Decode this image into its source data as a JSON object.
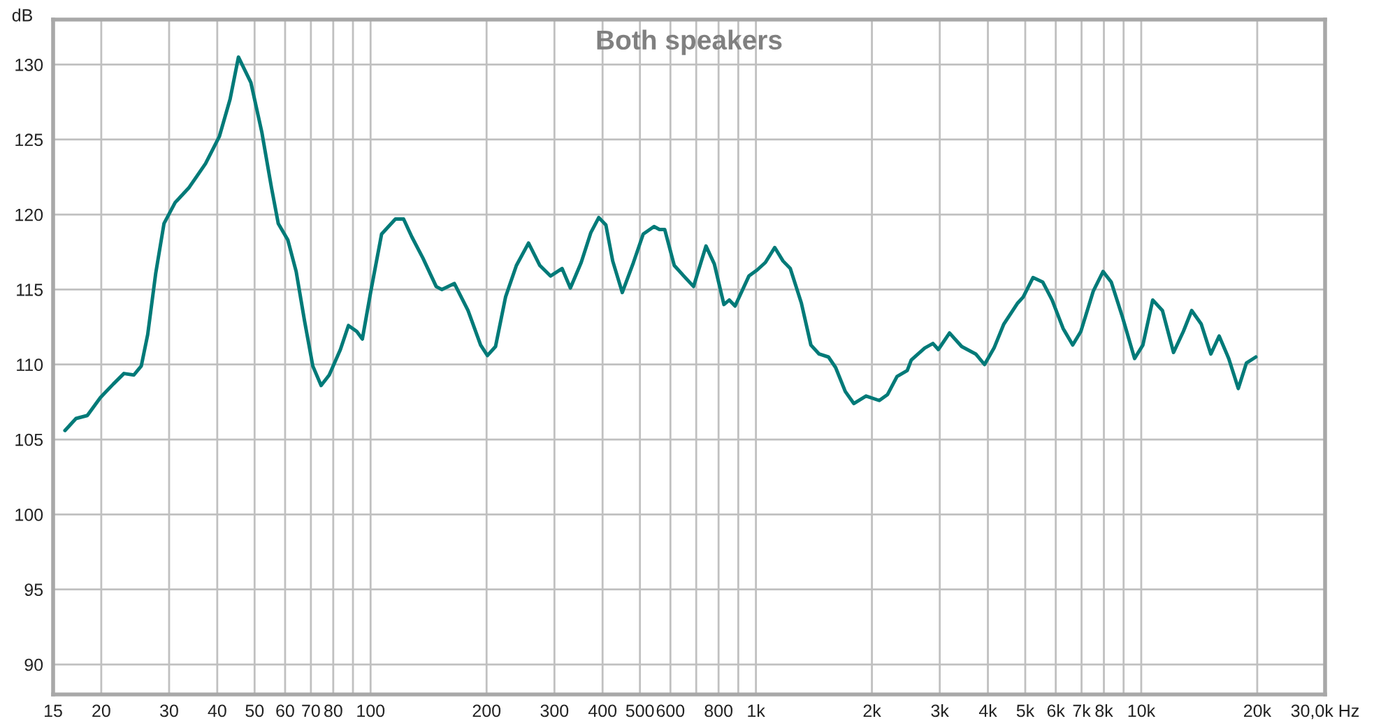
{
  "chart_data": {
    "type": "line",
    "title": "Both speakers",
    "ylabel": "dB",
    "log": "x",
    "grid": true,
    "line_style": "solid",
    "marker": "none",
    "xlim": [
      15,
      30000
    ],
    "ylim": [
      88,
      133
    ],
    "xticks": [
      15,
      20,
      30,
      40,
      50,
      60,
      70,
      80,
      {
        "value": 90,
        "label": null
      },
      100,
      200,
      300,
      400,
      500,
      600,
      {
        "value": 700,
        "label": null
      },
      800,
      {
        "value": 900,
        "label": null
      },
      {
        "value": 1000,
        "label": "1k"
      },
      {
        "value": 2000,
        "label": "2k"
      },
      {
        "value": 3000,
        "label": "3k"
      },
      {
        "value": 4000,
        "label": "4k"
      },
      {
        "value": 5000,
        "label": "5k"
      },
      {
        "value": 6000,
        "label": "6k"
      },
      {
        "value": 7000,
        "label": "7k"
      },
      {
        "value": 8000,
        "label": "8k"
      },
      {
        "value": 9000,
        "label": null
      },
      {
        "value": 10000,
        "label": "10k"
      },
      {
        "value": 20000,
        "label": "20k"
      },
      {
        "value": 30000,
        "label": "30,0k Hz"
      }
    ],
    "yticks": [
      90,
      95,
      100,
      105,
      110,
      115,
      120,
      125,
      130
    ],
    "series": [
      {
        "color": "#007a78",
        "x": [
          16.1,
          17.2,
          18.4,
          19.9,
          21.5,
          22.9,
          24.3,
          25.4,
          26.4,
          27.7,
          29.1,
          31.1,
          33.8,
          37.3,
          40.5,
          43.2,
          45.4,
          48.9,
          52.2,
          55.3,
          57.6,
          61.0,
          64.1,
          67.4,
          70.8,
          74.4,
          78.1,
          83.5,
          87.6,
          92.1,
          95.2,
          100,
          106.8,
          116,
          121.8,
          128,
          136.7,
          148,
          153,
          165,
          179,
          193,
          201,
          211,
          224,
          239,
          257,
          275,
          293,
          314,
          330,
          352,
          373,
          391,
          408,
          425,
          450,
          481,
          510,
          544,
          562,
          580,
          614,
          650,
          689,
          742,
          780,
          826,
          853,
          883,
          959,
          1007,
          1058,
          1119,
          1176,
          1228,
          1312,
          1389,
          1459,
          1543,
          1610,
          1706,
          1795,
          1931,
          2090,
          2196,
          2324,
          2470,
          2530,
          2743,
          2880,
          2975,
          3180,
          3420,
          3720,
          3920,
          4150,
          4400,
          4780,
          4940,
          5240,
          5550,
          5870,
          6270,
          6640,
          6970,
          7510,
          7960,
          8360,
          8930,
          9610,
          10100,
          10710,
          11350,
          12130,
          12860,
          13520,
          14310,
          15160,
          15930,
          16870,
          17860,
          18750,
          19830
        ],
        "values": [
          105.6,
          106.4,
          106.6,
          107.8,
          108.7,
          109.4,
          109.3,
          109.9,
          112,
          116.1,
          119.4,
          120.8,
          121.8,
          123.4,
          125.2,
          127.7,
          130.5,
          128.8,
          125.5,
          121.8,
          119.4,
          118.3,
          116.2,
          112.9,
          109.9,
          108.6,
          109.3,
          111.0,
          112.6,
          112.2,
          111.7,
          114.8,
          118.7,
          119.7,
          119.7,
          118.5,
          117.1,
          115.2,
          115.0,
          115.4,
          113.6,
          111.3,
          110.6,
          111.2,
          114.5,
          116.6,
          118.1,
          116.6,
          115.9,
          116.4,
          115.1,
          116.8,
          118.8,
          119.8,
          119.3,
          116.9,
          114.8,
          116.8,
          118.7,
          119.2,
          119,
          119,
          116.6,
          115.9,
          115.2,
          117.9,
          116.7,
          114.0,
          114.3,
          113.9,
          115.9,
          116.3,
          116.8,
          117.8,
          116.9,
          116.4,
          114.1,
          111.3,
          110.7,
          110.5,
          109.8,
          108.2,
          107.4,
          107.9,
          107.6,
          108.0,
          109.2,
          109.6,
          110.3,
          111.1,
          111.4,
          111.0,
          112.1,
          111.2,
          110.7,
          110.0,
          111.1,
          112.7,
          114.1,
          114.5,
          115.8,
          115.5,
          114.3,
          112.4,
          111.3,
          112.2,
          114.9,
          116.2,
          115.5,
          113.2,
          110.4,
          111.3,
          114.3,
          113.6,
          110.8,
          112.2,
          113.6,
          112.7,
          110.7,
          111.9,
          110.4,
          108.4,
          110.1,
          110.5
        ]
      }
    ]
  }
}
